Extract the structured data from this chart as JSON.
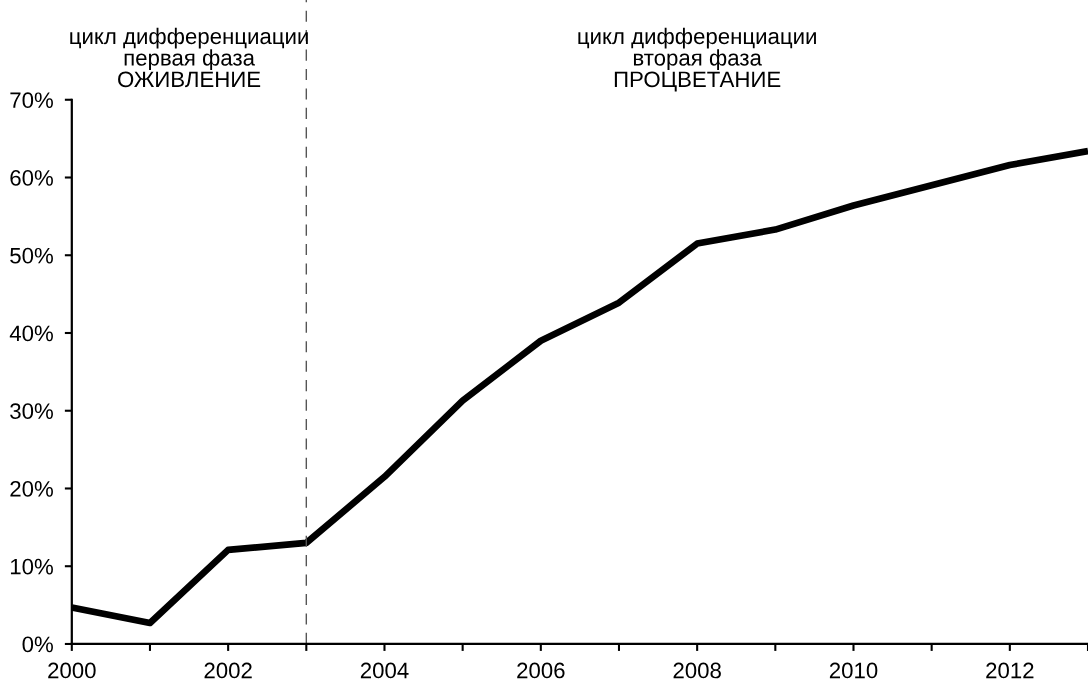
{
  "chart_data": {
    "type": "line",
    "x": [
      2000,
      2001,
      2002,
      2003,
      2004,
      2005,
      2006,
      2007,
      2008,
      2009,
      2010,
      2011,
      2012,
      2013
    ],
    "series": [
      {
        "color": "#000000",
        "values": [
          4.7,
          2.7,
          12.1,
          13.0,
          21.5,
          31.3,
          39.0,
          43.9,
          51.5,
          53.3,
          56.4,
          59.0,
          61.6,
          63.4
        ]
      }
    ],
    "xlim": [
      2000,
      2013
    ],
    "xticks": [
      2000,
      {
        "value": 2001,
        "label": null
      },
      2002,
      {
        "value": 2003,
        "label": null
      },
      2004,
      {
        "value": 2005,
        "label": null
      },
      2006,
      {
        "value": 2007,
        "label": null
      },
      2008,
      {
        "value": 2009,
        "label": null
      },
      2010,
      {
        "value": 2011,
        "label": null
      },
      2012,
      {
        "value": 2013,
        "label": null
      }
    ],
    "ylim": [
      0,
      70
    ],
    "yticks": [
      {
        "value": 0,
        "label": "0%"
      },
      {
        "value": 10,
        "label": "10%"
      },
      {
        "value": 20,
        "label": "20%"
      },
      {
        "value": 30,
        "label": "30%"
      },
      {
        "value": 40,
        "label": "40%"
      },
      {
        "value": 50,
        "label": "50%"
      },
      {
        "value": 60,
        "label": "60%"
      },
      {
        "value": 70,
        "label": "70%"
      }
    ],
    "ref_lines": [
      {
        "axis": "x",
        "value": 2003,
        "color": "#555555",
        "line_style": "dashed"
      }
    ],
    "annotations": [
      "цикл дифференциации\nпервая фаза\nОЖИВЛЕНИЕ",
      "цикл дифференциации\nвторая фаза\nПРОЦВЕТАНИЕ"
    ],
    "grid": false,
    "legend": false,
    "marker": "none",
    "line_style": "solid"
  }
}
